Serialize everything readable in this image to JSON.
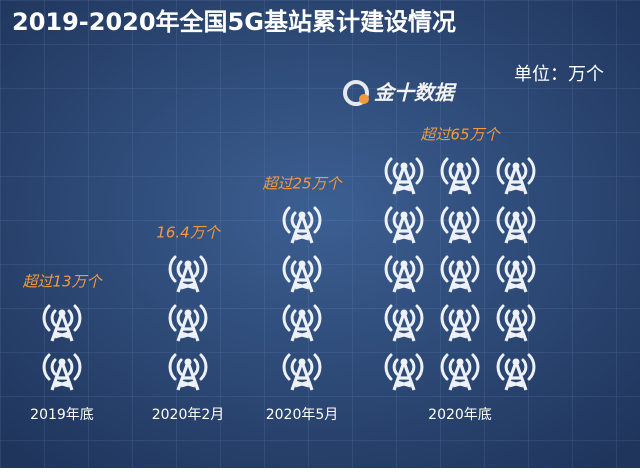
{
  "chart_data": {
    "type": "pictogram",
    "title": "2019-2020年全国5G基站累计建设情况",
    "unit_label": "单位：万个",
    "source": "金十数据",
    "categories": [
      "2019年底",
      "2020年2月",
      "2020年5月",
      "2020年底"
    ],
    "values": [
      13,
      16.4,
      25,
      65
    ],
    "value_labels": [
      "超过13万个",
      "16.4万个",
      "超过25万个",
      "超过65万个"
    ],
    "color": "#f29a3a"
  }
}
